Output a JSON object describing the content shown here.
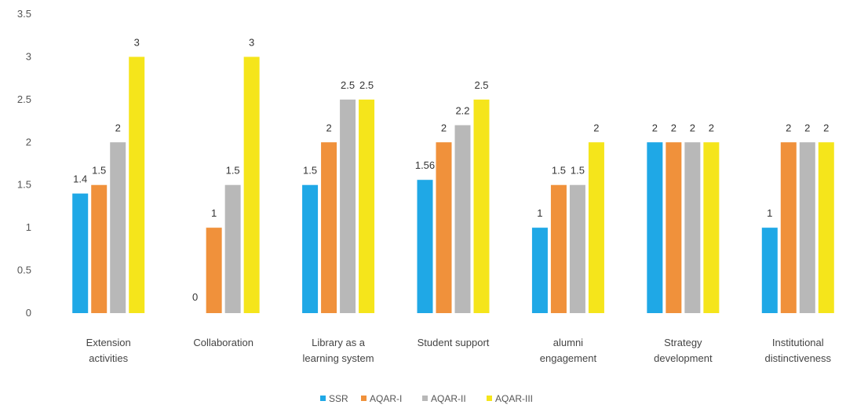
{
  "chart_data": {
    "type": "bar",
    "title": "",
    "xlabel": "",
    "ylabel": "",
    "ylim": [
      0,
      3.5
    ],
    "yticks": [
      "0",
      "0.5",
      "1",
      "1.5",
      "2",
      "2.5",
      "3",
      "3.5"
    ],
    "categories": [
      [
        "Extension",
        "activities"
      ],
      [
        "Collaboration"
      ],
      [
        "Library as a",
        "learning system"
      ],
      [
        "Student support"
      ],
      [
        "alumni",
        "engagement"
      ],
      [
        "Strategy",
        "development"
      ],
      [
        "Institutional",
        "distinctiveness"
      ]
    ],
    "series": [
      {
        "name": "SSR",
        "color": "#1fa8e6",
        "values": [
          1.4,
          0,
          1.5,
          1.56,
          1,
          2,
          1
        ],
        "labels": [
          "1.4",
          "0",
          "1.5",
          "1.56",
          "1",
          "2",
          "1"
        ]
      },
      {
        "name": "AQAR-I",
        "color": "#f0913b",
        "values": [
          1.5,
          1,
          2,
          2,
          1.5,
          2,
          2
        ],
        "labels": [
          "1.5",
          "1",
          "2",
          "2",
          "1.5",
          "2",
          "2"
        ]
      },
      {
        "name": "AQAR-II",
        "color": "#b8b8b8",
        "values": [
          2,
          1.5,
          2.5,
          2.2,
          1.5,
          2,
          2
        ],
        "labels": [
          "2",
          "1.5",
          "2.5",
          "2.2",
          "1.5",
          "2",
          "2"
        ]
      },
      {
        "name": "AQAR-III",
        "color": "#f5e51b",
        "values": [
          3,
          3,
          2.5,
          2.5,
          2,
          2,
          2
        ],
        "labels": [
          "3",
          "3",
          "2.5",
          "2.5",
          "2",
          "2",
          "2"
        ]
      }
    ],
    "grid": false,
    "legend": "bottom"
  }
}
